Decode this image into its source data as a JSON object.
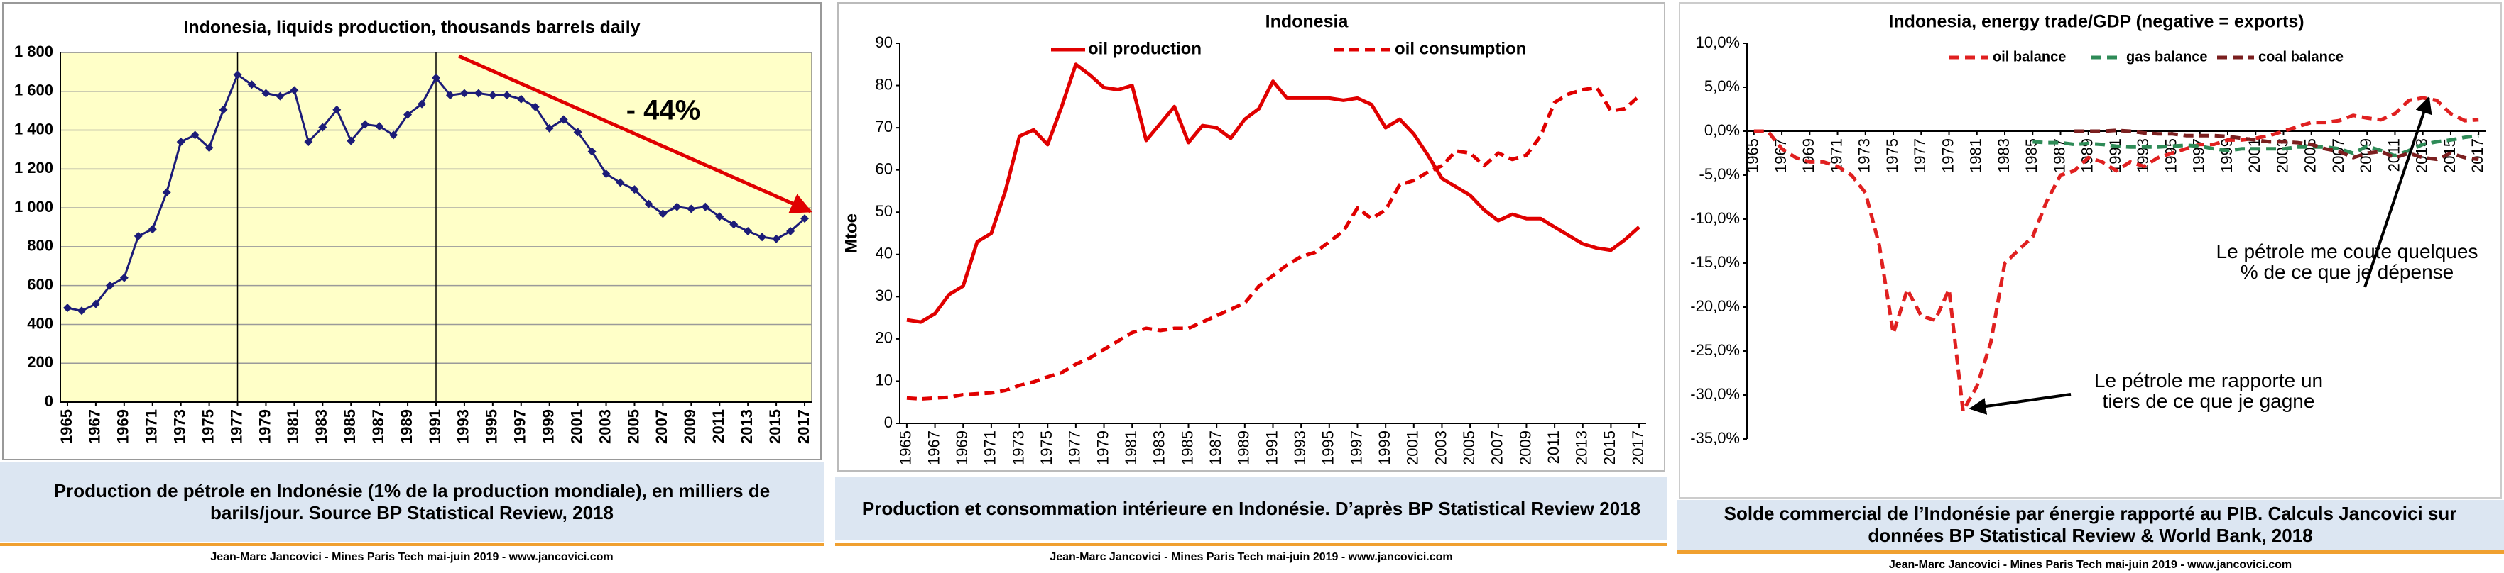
{
  "chart_data": [
    {
      "type": "line",
      "title": "Indonesia, liquids production, thousands barrels daily",
      "x": [
        1965,
        1966,
        1967,
        1968,
        1969,
        1970,
        1971,
        1972,
        1973,
        1974,
        1975,
        1976,
        1977,
        1978,
        1979,
        1980,
        1981,
        1982,
        1983,
        1984,
        1985,
        1986,
        1987,
        1988,
        1989,
        1990,
        1991,
        1992,
        1993,
        1994,
        1995,
        1996,
        1997,
        1998,
        1999,
        2000,
        2001,
        2002,
        2003,
        2004,
        2005,
        2006,
        2007,
        2008,
        2009,
        2010,
        2011,
        2012,
        2013,
        2014,
        2015,
        2016,
        2017
      ],
      "values": [
        485,
        470,
        505,
        600,
        640,
        855,
        890,
        1080,
        1340,
        1375,
        1310,
        1505,
        1685,
        1635,
        1590,
        1575,
        1605,
        1340,
        1415,
        1505,
        1345,
        1430,
        1420,
        1375,
        1480,
        1535,
        1670,
        1580,
        1590,
        1590,
        1580,
        1580,
        1560,
        1520,
        1410,
        1455,
        1390,
        1290,
        1175,
        1130,
        1095,
        1020,
        970,
        1005,
        995,
        1005,
        955,
        915,
        880,
        850,
        840,
        880,
        945
      ],
      "color": "#1c1c78",
      "xlim": [
        1964.5,
        2017.5
      ],
      "xticks": [
        1965,
        1967,
        1969,
        1971,
        1973,
        1975,
        1977,
        1979,
        1981,
        1983,
        1985,
        1987,
        1989,
        1991,
        1993,
        1995,
        1997,
        1999,
        2001,
        2003,
        2005,
        2007,
        2009,
        2011,
        2013,
        2015,
        2017
      ],
      "ylim": [
        0,
        1800
      ],
      "yticks": [
        0,
        200,
        400,
        600,
        800,
        {
          "value": 1000,
          "label": "1 000"
        },
        {
          "value": 1200,
          "label": "1 200"
        },
        {
          "value": 1400,
          "label": "1 400"
        },
        {
          "value": 1600,
          "label": "1 600"
        },
        {
          "value": 1800,
          "label": "1 800"
        }
      ],
      "vlines": [
        1977,
        1991
      ],
      "grid": true,
      "annotation": "- 44%"
    },
    {
      "type": "line",
      "title": "Indonesia",
      "ylabel": "Mtoe",
      "x": [
        1965,
        1966,
        1967,
        1968,
        1969,
        1970,
        1971,
        1972,
        1973,
        1974,
        1975,
        1976,
        1977,
        1978,
        1979,
        1980,
        1981,
        1982,
        1983,
        1984,
        1985,
        1986,
        1987,
        1988,
        1989,
        1990,
        1991,
        1992,
        1993,
        1994,
        1995,
        1996,
        1997,
        1998,
        1999,
        2000,
        2001,
        2002,
        2003,
        2004,
        2005,
        2006,
        2007,
        2008,
        2009,
        2010,
        2011,
        2012,
        2013,
        2014,
        2015,
        2016,
        2017
      ],
      "series": [
        {
          "name": "oil production",
          "color": "#e00000",
          "dashed": false,
          "values": [
            24.5,
            24,
            26,
            30.5,
            32.5,
            43,
            45,
            55,
            68,
            69.5,
            66,
            75,
            85,
            82.5,
            79.5,
            79,
            80,
            67,
            71,
            75,
            66.5,
            70.5,
            70,
            67.5,
            72,
            74.5,
            81,
            77,
            77,
            77,
            77,
            76.5,
            77,
            75.5,
            70,
            72,
            68.5,
            63.5,
            58,
            56,
            54,
            50.5,
            48,
            49.5,
            48.5,
            48.5,
            46.5,
            44.5,
            42.5,
            41.5,
            41,
            43.5,
            46.5
          ]
        },
        {
          "name": "oil consumption",
          "color": "#e00000",
          "dashed": true,
          "values": [
            6,
            5.8,
            6,
            6.2,
            6.8,
            7,
            7.2,
            7.8,
            9,
            9.8,
            11,
            12,
            14,
            15.5,
            17.5,
            19.5,
            21.5,
            22.5,
            22,
            22.5,
            22.5,
            24,
            25.5,
            27,
            28.5,
            32.5,
            35,
            37.5,
            39.5,
            40.5,
            43,
            45.5,
            51,
            48.5,
            50.5,
            56.5,
            57.5,
            59.5,
            61,
            64.5,
            64,
            61,
            64,
            62.5,
            63.5,
            68,
            76,
            78,
            79,
            79.5,
            74,
            74.5,
            77.5
          ]
        }
      ],
      "xlim": [
        1964.5,
        2017.5
      ],
      "xticks": [
        1965,
        1967,
        1969,
        1971,
        1973,
        1975,
        1977,
        1979,
        1981,
        1983,
        1985,
        1987,
        1989,
        1991,
        1993,
        1995,
        1997,
        1999,
        2001,
        2003,
        2005,
        2007,
        2009,
        2011,
        2013,
        2015,
        2017
      ],
      "ylim": [
        0,
        90
      ],
      "yticks": [
        0,
        10,
        20,
        30,
        40,
        50,
        60,
        70,
        80,
        90
      ],
      "grid": false
    },
    {
      "type": "line",
      "title": "Indonesia, energy trade/GDP (negative = exports)",
      "x": [
        1965,
        1966,
        1967,
        1968,
        1969,
        1970,
        1971,
        1972,
        1973,
        1974,
        1975,
        1976,
        1977,
        1978,
        1979,
        1980,
        1981,
        1982,
        1983,
        1984,
        1985,
        1986,
        1987,
        1988,
        1989,
        1990,
        1991,
        1992,
        1993,
        1994,
        1995,
        1996,
        1997,
        1998,
        1999,
        2000,
        2001,
        2002,
        2003,
        2004,
        2005,
        2006,
        2007,
        2008,
        2009,
        2010,
        2011,
        2012,
        2013,
        2014,
        2015,
        2016,
        2017
      ],
      "series": [
        {
          "name": "oil balance",
          "color": "#e02020",
          "dashed": true,
          "values": [
            0,
            0,
            -2,
            -3,
            -3.5,
            -3.5,
            -4,
            -5,
            -7,
            -13,
            -23,
            -18,
            -21,
            -21.5,
            -18,
            -31.8,
            -29,
            -24,
            -15,
            -13.5,
            -12,
            -8,
            -5,
            -4.5,
            -3,
            -3.5,
            -4.5,
            -3.5,
            -4,
            -3,
            -2.5,
            -2,
            -1.5,
            -1.5,
            -1,
            -1,
            -0.8,
            -0.5,
            0,
            0.5,
            1,
            1,
            1.2,
            1.8,
            1.5,
            1.3,
            2,
            3.5,
            3.8,
            3.5,
            2,
            1.2,
            1.3
          ]
        },
        {
          "name": "gas balance",
          "color": "#2e8b57",
          "dashed": true,
          "values": [
            null,
            null,
            null,
            null,
            null,
            null,
            null,
            null,
            null,
            null,
            null,
            null,
            null,
            null,
            null,
            null,
            null,
            null,
            null,
            null,
            -1.2,
            -1.3,
            -1.3,
            -1.5,
            -1.4,
            -1.5,
            -1.7,
            -1.8,
            -1.8,
            -1.8,
            -1.7,
            -1.6,
            -1.7,
            -2,
            -2.2,
            -2,
            -2,
            -2,
            -2,
            -1.8,
            -1.8,
            -1.8,
            -2,
            -2.5,
            -1.7,
            -2.2,
            -2.8,
            -2.2,
            -1.5,
            -1.2,
            -1,
            -0.7,
            -0.5
          ]
        },
        {
          "name": "coal balance",
          "color": "#7b1f1f",
          "dashed": true,
          "values": [
            null,
            null,
            null,
            null,
            null,
            null,
            null,
            null,
            null,
            null,
            null,
            null,
            null,
            null,
            null,
            null,
            null,
            null,
            null,
            null,
            null,
            null,
            null,
            0,
            0,
            0,
            0.1,
            0,
            -0.2,
            -0.3,
            -0.3,
            -0.5,
            -0.5,
            -0.5,
            -0.6,
            -0.8,
            -1,
            -1.2,
            -1.2,
            -1.3,
            -1.5,
            -2,
            -2.3,
            -3,
            -2.5,
            -2.3,
            -3,
            -2.5,
            -3,
            -3.2,
            -2.5,
            -3,
            -3.2
          ]
        }
      ],
      "xlim": [
        1964.5,
        2017.5
      ],
      "xticks": [
        1965,
        1967,
        1969,
        1971,
        1973,
        1975,
        1977,
        1979,
        1981,
        1983,
        1985,
        1987,
        1989,
        1991,
        1993,
        1995,
        1997,
        1999,
        2001,
        2003,
        2005,
        2007,
        2009,
        2011,
        2013,
        2015,
        2017
      ],
      "ylim": [
        -35,
        10
      ],
      "yticks": [
        {
          "value": -35,
          "label": "-35,0%"
        },
        {
          "value": -30,
          "label": "-30,0%"
        },
        {
          "value": -25,
          "label": "-25,0%"
        },
        {
          "value": -20,
          "label": "-20,0%"
        },
        {
          "value": -15,
          "label": "-15,0%"
        },
        {
          "value": -10,
          "label": "-10,0%"
        },
        {
          "value": -5,
          "label": "-5,0%"
        },
        {
          "value": 0,
          "label": "0,0%"
        },
        {
          "value": 5,
          "label": "5,0%"
        },
        {
          "value": 10,
          "label": "10,0%"
        }
      ],
      "grid": false,
      "annotations": [
        "Le pétrole me coute quelques % de ce que je dépense",
        "Le pétrole me rapporte un tiers de ce que je gagne"
      ]
    }
  ],
  "captions": [
    "Production de pétrole en Indonésie (1% de la production mondiale), en milliers de barils/jour. Source BP Statistical Review, 2018",
    "Production et consommation intérieure en Indonésie. D’après BP Statistical Review 2018",
    "Solde commercial de l’Indonésie par énergie rapporté au PIB. Calculs Jancovici sur données BP Statistical Review & World Bank, 2018"
  ],
  "footers": [
    "Jean-Marc Jancovici - Mines Paris Tech mai-juin 2019 - www.jancovici.com",
    "Jean-Marc Jancovici - Mines Paris Tech mai-juin 2019 - www.jancovici.com",
    "Jean-Marc Jancovici - Mines Paris Tech mai-juin 2019 - www.jancovici.com"
  ]
}
